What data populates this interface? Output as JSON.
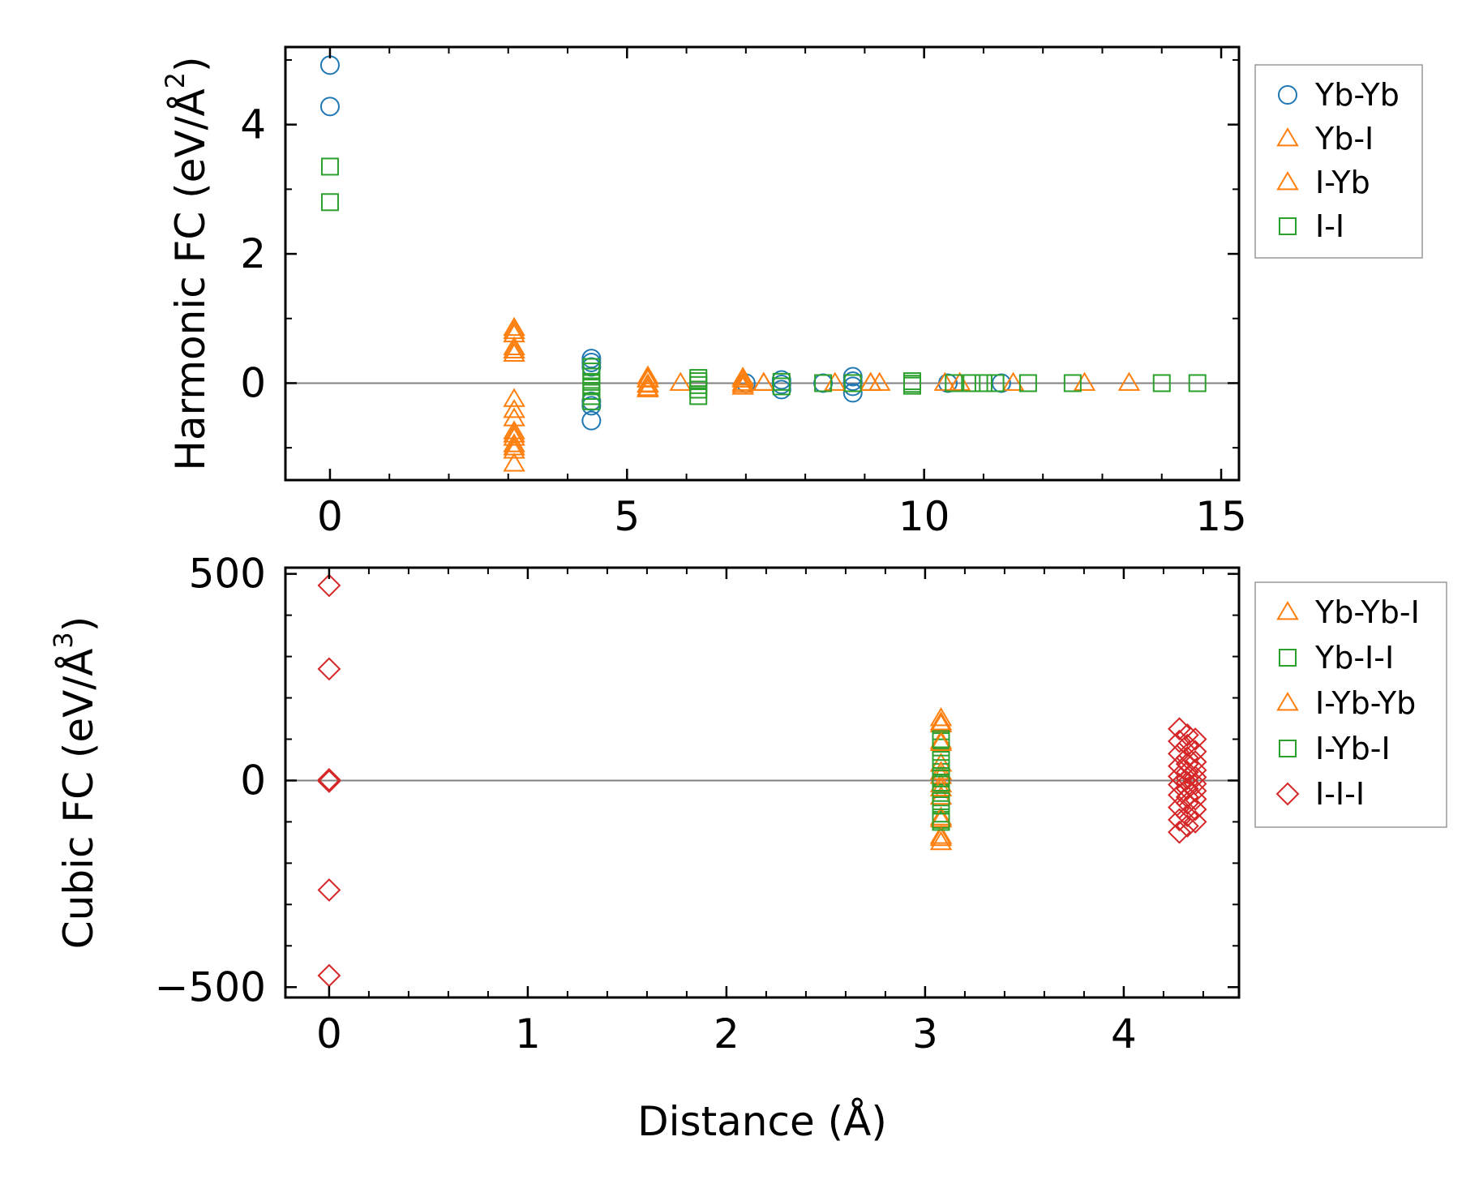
{
  "colors": {
    "Yb-Yb": "#1f77b4",
    "Yb-I": "#ff7f0e",
    "I-Yb": "#ff7f0e",
    "I-I": "#2ca02c",
    "Yb-Yb-I": "#ff7f0e",
    "Yb-I-I": "#2ca02c",
    "I-Yb-Yb": "#ff7f0e",
    "I-Yb-I": "#2ca02c",
    "I-I-I": "#d62728",
    "zero_line": "#808080"
  },
  "chart_data": [
    {
      "type": "scatter",
      "id": "harmonic",
      "ylabel_main": "Harmonic FC (eV/Å",
      "ylabel_sup": "2",
      "ylabel_end": ")",
      "xlabel": "",
      "xlim": [
        -0.75,
        15.3
      ],
      "ylim": [
        -1.5,
        5.2
      ],
      "xticks": [
        0,
        5,
        10,
        15
      ],
      "xtick_labels": [
        "0",
        "5",
        "10",
        "15"
      ],
      "xminor": [
        1,
        2,
        3,
        4,
        6,
        7,
        8,
        9,
        11,
        12,
        13,
        14
      ],
      "yticks": [
        0,
        2,
        4
      ],
      "ytick_labels": [
        "0",
        "2",
        "4"
      ],
      "yminor": [
        -1,
        1,
        3,
        5
      ],
      "zero_line": true,
      "legend": [
        "Yb-Yb",
        "Yb-I",
        "I-Yb",
        "I-I"
      ],
      "series": [
        {
          "name": "Yb-Yb",
          "marker": "circle",
          "filled": false,
          "x": [
            0,
            0,
            4.4,
            4.4,
            4.4,
            4.4,
            4.4,
            4.4,
            7.0,
            7.6,
            7.6,
            7.6,
            8.3,
            8.8,
            8.8,
            8.8,
            8.8,
            10.4,
            11.3
          ],
          "y": [
            4.92,
            4.28,
            0.38,
            0.32,
            0.25,
            -0.28,
            -0.35,
            -0.58,
            0.0,
            0.05,
            -0.02,
            -0.1,
            0.0,
            0.1,
            0.03,
            -0.05,
            -0.15,
            0.0,
            0.0
          ]
        },
        {
          "name": "Yb-I",
          "marker": "triangle",
          "filled": false,
          "x": [
            3.1,
            3.1,
            3.1,
            3.1,
            3.1,
            3.1,
            3.1,
            3.1,
            3.1,
            3.1,
            3.1,
            3.1,
            5.35,
            5.35,
            5.35,
            5.35,
            5.9,
            6.95,
            6.95,
            6.95,
            7.3,
            8.5,
            9.1,
            9.25,
            10.35,
            10.6,
            11.5,
            12.7,
            13.45
          ],
          "y": [
            0.85,
            0.75,
            0.55,
            0.45,
            -0.25,
            -0.42,
            -0.55,
            -0.75,
            -0.85,
            -0.95,
            -1.05,
            -1.25,
            0.1,
            0.05,
            -0.03,
            -0.1,
            0.0,
            0.08,
            0.0,
            -0.06,
            0.0,
            0.0,
            0.0,
            0.0,
            0.0,
            0.0,
            0.0,
            0.0,
            0.0
          ]
        },
        {
          "name": "I-Yb",
          "marker": "triangle",
          "filled": false,
          "x": [
            3.1,
            3.1,
            3.1,
            3.1,
            5.35,
            5.35,
            5.35,
            6.95,
            6.95,
            7.3,
            9.1
          ],
          "y": [
            0.8,
            0.5,
            -0.8,
            -1.0,
            0.06,
            -0.02,
            -0.08,
            0.05,
            -0.03,
            0.0,
            0.0
          ]
        },
        {
          "name": "I-I",
          "marker": "square",
          "filled": false,
          "x": [
            0,
            0,
            4.4,
            4.4,
            4.4,
            4.4,
            4.4,
            4.4,
            4.4,
            4.4,
            6.2,
            6.2,
            6.2,
            6.2,
            6.2,
            7.6,
            7.6,
            8.3,
            8.8,
            9.8,
            9.8,
            9.8,
            10.5,
            10.8,
            11.0,
            11.2,
            11.75,
            12.5,
            14.0,
            14.6
          ],
          "y": [
            3.35,
            2.8,
            0.25,
            0.18,
            0.1,
            0.02,
            -0.05,
            -0.12,
            -0.2,
            -0.28,
            0.08,
            0.03,
            -0.03,
            -0.1,
            -0.2,
            0.02,
            -0.05,
            0.0,
            0.0,
            0.03,
            -0.01,
            -0.04,
            0.0,
            0.0,
            0.0,
            0.0,
            0.0,
            0.0,
            0.0,
            0.0
          ]
        }
      ]
    },
    {
      "type": "scatter",
      "id": "cubic",
      "ylabel_main": "Cubic FC (eV/Å",
      "ylabel_sup": "3",
      "ylabel_end": ")",
      "xlabel": "Distance (Å)",
      "xlim": [
        -0.22,
        4.58
      ],
      "ylim": [
        -525,
        515
      ],
      "xticks": [
        0,
        1,
        2,
        3,
        4
      ],
      "xtick_labels": [
        "0",
        "1",
        "2",
        "3",
        "4"
      ],
      "xminor": [
        0.2,
        0.4,
        0.6,
        0.8,
        1.2,
        1.4,
        1.6,
        1.8,
        2.2,
        2.4,
        2.6,
        2.8,
        3.2,
        3.4,
        3.6,
        3.8,
        4.2,
        4.4
      ],
      "yticks": [
        -500,
        0,
        500
      ],
      "ytick_labels": [
        "−500",
        "0",
        "500"
      ],
      "yminor": [
        -400,
        -300,
        -200,
        -100,
        100,
        200,
        300,
        400
      ],
      "zero_line": true,
      "legend": [
        "Yb-Yb-I",
        "Yb-I-I",
        "I-Yb-Yb",
        "I-Yb-I",
        "I-I-I"
      ],
      "series": [
        {
          "name": "Yb-Yb-I",
          "marker": "triangle",
          "filled": false,
          "x": [
            3.08,
            3.08,
            3.08,
            3.08,
            3.08,
            3.08,
            3.08,
            3.08,
            3.08,
            3.08
          ],
          "y": [
            150,
            135,
            95,
            40,
            10,
            -10,
            -40,
            -95,
            -135,
            -150
          ]
        },
        {
          "name": "Yb-I-I",
          "marker": "square",
          "filled": false,
          "x": [
            3.08,
            3.08,
            3.08,
            3.08,
            3.08,
            3.08,
            3.08,
            3.08,
            3.08,
            3.08
          ],
          "y": [
            95,
            80,
            60,
            30,
            10,
            -10,
            -30,
            -60,
            -80,
            -95
          ]
        },
        {
          "name": "I-Yb-Yb",
          "marker": "triangle",
          "filled": false,
          "x": [
            3.08,
            3.08,
            3.08,
            3.08,
            3.08,
            3.08
          ],
          "y": [
            140,
            90,
            20,
            -20,
            -90,
            -140
          ]
        },
        {
          "name": "I-Yb-I",
          "marker": "square",
          "filled": false,
          "x": [
            3.08,
            3.08,
            3.08,
            3.08,
            3.08,
            3.08
          ],
          "y": [
            100,
            50,
            5,
            -5,
            -50,
            -100
          ]
        },
        {
          "name": "I-I-I",
          "marker": "diamond",
          "filled": false,
          "x": [
            0,
            0,
            0,
            0,
            0,
            0,
            4.28,
            4.28,
            4.28,
            4.28,
            4.28,
            4.28,
            4.28,
            4.28,
            4.28,
            4.28,
            4.32,
            4.32,
            4.32,
            4.32,
            4.32,
            4.32,
            4.32,
            4.32,
            4.32,
            4.32,
            4.32,
            4.32,
            4.36,
            4.36,
            4.36,
            4.36,
            4.36,
            4.36,
            4.36,
            4.36,
            4.36,
            4.36
          ],
          "y": [
            472,
            270,
            2,
            -2,
            -265,
            -472,
            125,
            95,
            65,
            35,
            10,
            -10,
            -35,
            -65,
            -95,
            -125,
            110,
            85,
            55,
            40,
            20,
            5,
            -5,
            -20,
            -40,
            -55,
            -85,
            -110,
            100,
            70,
            45,
            25,
            8,
            -8,
            -25,
            -45,
            -70,
            -100
          ]
        }
      ]
    }
  ]
}
